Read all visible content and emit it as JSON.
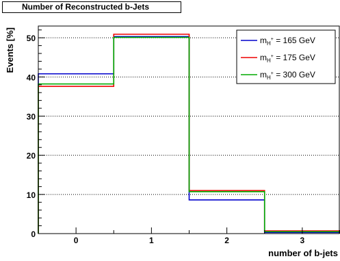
{
  "chart_data": {
    "type": "step-histogram",
    "title": "Number of Reconstructed b-Jets",
    "xlabel": "number of b-jets",
    "ylabel": "Events [%]",
    "categories": [
      "0",
      "1",
      "2",
      "3"
    ],
    "x_ticks": [
      0,
      1,
      2,
      3
    ],
    "y_ticks": [
      0,
      10,
      20,
      30,
      40,
      50
    ],
    "xlim": [
      -0.5,
      3.5
    ],
    "ylim": [
      0,
      53
    ],
    "grid": "horizontal dotted",
    "legend_position": "top-right",
    "series": [
      {
        "name": "m_{H+} = 165 GeV",
        "legend_main": "m",
        "legend_sub": "H",
        "legend_sup": "+",
        "legend_tail": " = 165 GeV",
        "color": "#0000cc",
        "values": [
          40.8,
          50.3,
          8.6,
          0.3
        ]
      },
      {
        "name": "m_{H+} = 175 GeV",
        "legend_main": "m",
        "legend_sub": "H",
        "legend_sup": "+",
        "legend_tail": " = 175 GeV",
        "color": "#ee0000",
        "values": [
          37.6,
          50.9,
          11.0,
          0.7
        ]
      },
      {
        "name": "m_{H+} = 300 GeV",
        "legend_main": "m",
        "legend_sub": "H",
        "legend_sup": "+",
        "legend_tail": " = 300 GeV",
        "color": "#00aa00",
        "values": [
          38.2,
          50.1,
          10.7,
          0.5
        ]
      }
    ]
  }
}
